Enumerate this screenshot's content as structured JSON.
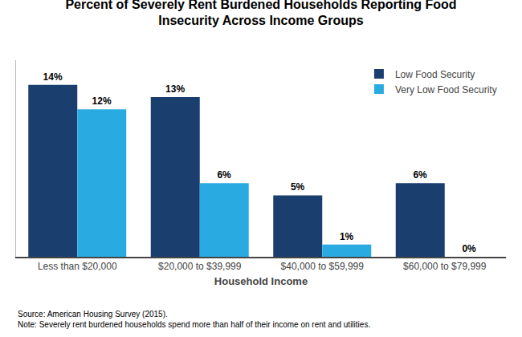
{
  "chart_data": {
    "type": "bar",
    "title": "Percent of Severely Rent Burdened Households Reporting Food\nInsecurity Across Income Groups",
    "xlabel": "Household Income",
    "categories": [
      "Less than $20,000",
      "$20,000 to $39,999",
      "$40,000 to $59,999",
      "$60,000 to $79,999"
    ],
    "series": [
      {
        "name": "Low Food Security",
        "color": "#1a3f6f",
        "values": [
          14,
          13,
          5,
          6
        ],
        "value_labels": [
          "14%",
          "13%",
          "5%",
          "6%"
        ]
      },
      {
        "name": "Very Low Food Security",
        "color": "#29abe2",
        "values": [
          12,
          6,
          1,
          0
        ],
        "value_labels": [
          "12%",
          "6%",
          "1%",
          "0%"
        ]
      }
    ],
    "ylim": [
      0,
      16
    ],
    "data_labels": true,
    "tick_labels": "x",
    "grid": false,
    "legend": "upper right",
    "annotations": [
      "Source: American Housing Survey (2015).\nNote: Severely rent burdened households spend more than half of their income on rent and utilities."
    ]
  }
}
